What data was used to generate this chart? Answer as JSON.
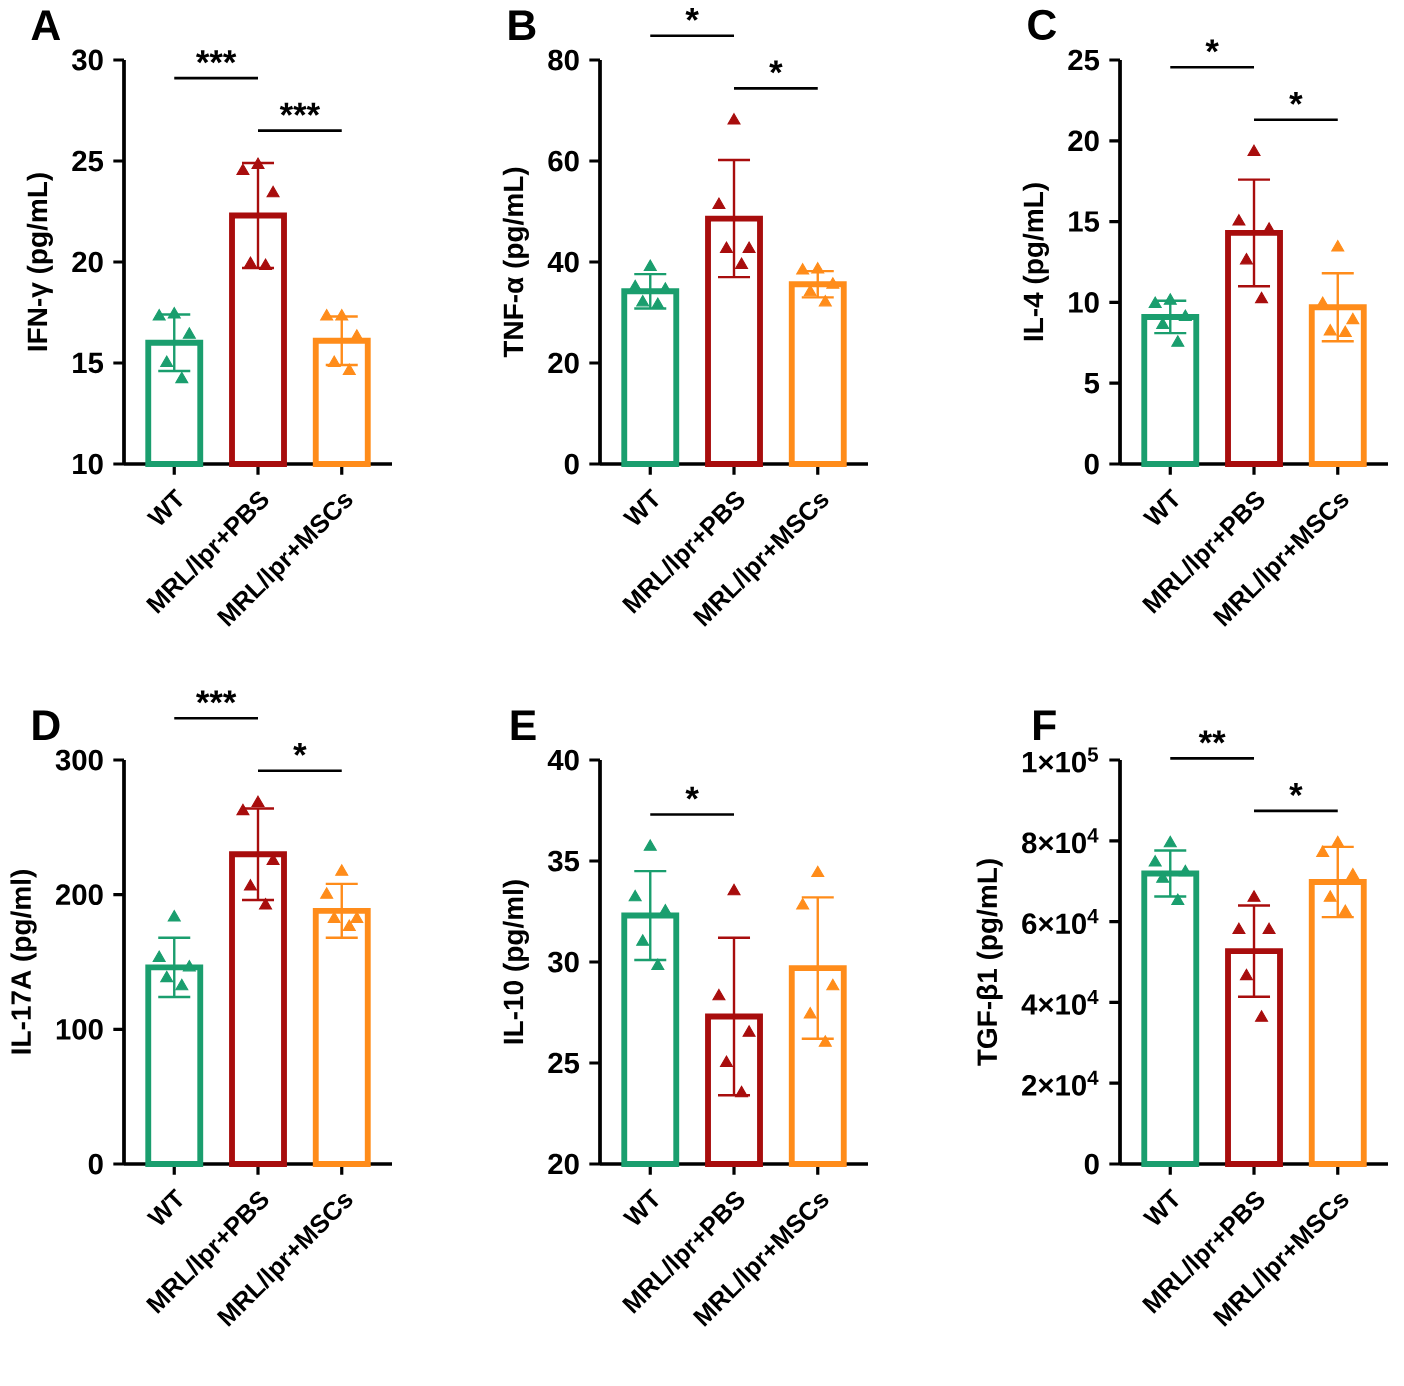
{
  "chart_data": [
    {
      "type": "bar",
      "title": "A",
      "ylabel": "IFN-γ (pg/mL)",
      "categories": [
        "WT",
        "MRL/lpr+PBS",
        "MRL/lpr+MSCs"
      ],
      "ylim": [
        10,
        30
      ],
      "yticks": [
        10,
        15,
        20,
        25,
        30
      ],
      "annotations": [
        "***",
        "***"
      ],
      "series": [
        {
          "values": [
            16.0,
            22.3,
            16.1
          ],
          "colors": [
            "#1a9e6e",
            "#a80d0d",
            "#ff8c1a"
          ],
          "errors": [
            1.4,
            2.6,
            1.2
          ]
        },
        {
          "type": "scatter",
          "marker": "triangle",
          "x": [
            "WT",
            "WT",
            "WT",
            "WT",
            "WT",
            "MRL/lpr+PBS",
            "MRL/lpr+PBS",
            "MRL/lpr+PBS",
            "MRL/lpr+PBS",
            "MRL/lpr+PBS",
            "MRL/lpr+MSCs",
            "MRL/lpr+MSCs",
            "MRL/lpr+MSCs",
            "MRL/lpr+MSCs",
            "MRL/lpr+MSCs"
          ],
          "values": [
            17.4,
            17.3,
            16.4,
            15.0,
            14.2,
            24.8,
            24.5,
            23.4,
            19.9,
            19.8,
            17.3,
            17.3,
            16.3,
            15.0,
            14.6
          ],
          "colors": [
            "#1a9e6e",
            "#1a9e6e",
            "#1a9e6e",
            "#1a9e6e",
            "#1a9e6e",
            "#a80d0d",
            "#a80d0d",
            "#a80d0d",
            "#a80d0d",
            "#a80d0d",
            "#ff8c1a",
            "#ff8c1a",
            "#ff8c1a",
            "#ff8c1a",
            "#ff8c1a"
          ]
        }
      ]
    },
    {
      "type": "bar",
      "title": "B",
      "ylabel": "TNF-α (pg/mL)",
      "categories": [
        "WT",
        "MRL/lpr+PBS",
        "MRL/lpr+MSCs"
      ],
      "ylim": [
        0,
        80
      ],
      "yticks": [
        0,
        20,
        40,
        60,
        80
      ],
      "annotations": [
        "*",
        "*"
      ],
      "series": [
        {
          "values": [
            34.2,
            48.6,
            35.6
          ],
          "colors": [
            "#1a9e6e",
            "#a80d0d",
            "#ff8c1a"
          ],
          "errors": [
            3.4,
            11.6,
            2.6
          ]
        },
        {
          "type": "scatter",
          "marker": "triangle",
          "x": [
            "WT",
            "WT",
            "WT",
            "WT",
            "WT",
            "MRL/lpr+PBS",
            "MRL/lpr+PBS",
            "MRL/lpr+PBS",
            "MRL/lpr+PBS",
            "MRL/lpr+PBS",
            "MRL/lpr+MSCs",
            "MRL/lpr+MSCs",
            "MRL/lpr+MSCs",
            "MRL/lpr+MSCs",
            "MRL/lpr+MSCs"
          ],
          "values": [
            39.0,
            35.0,
            34.5,
            32.0,
            31.5,
            68.0,
            51.3,
            42.6,
            42.6,
            39.4,
            38.5,
            38.3,
            35.5,
            34.0,
            32.0
          ],
          "colors": [
            "#1a9e6e",
            "#1a9e6e",
            "#1a9e6e",
            "#1a9e6e",
            "#1a9e6e",
            "#a80d0d",
            "#a80d0d",
            "#a80d0d",
            "#a80d0d",
            "#a80d0d",
            "#ff8c1a",
            "#ff8c1a",
            "#ff8c1a",
            "#ff8c1a",
            "#ff8c1a"
          ]
        }
      ]
    },
    {
      "type": "bar",
      "title": "C",
      "ylabel": "IL-4 (pg/mL)",
      "categories": [
        "WT",
        "MRL/lpr+PBS",
        "MRL/lpr+MSCs"
      ],
      "ylim": [
        0,
        25
      ],
      "yticks": [
        0,
        5,
        10,
        15,
        20,
        25
      ],
      "annotations": [
        "*",
        "*"
      ],
      "series": [
        {
          "values": [
            9.1,
            14.3,
            9.7
          ],
          "colors": [
            "#1a9e6e",
            "#a80d0d",
            "#ff8c1a"
          ],
          "errors": [
            1.0,
            3.3,
            2.1
          ]
        },
        {
          "type": "scatter",
          "marker": "triangle",
          "x": [
            "WT",
            "WT",
            "WT",
            "WT",
            "WT",
            "MRL/lpr+PBS",
            "MRL/lpr+PBS",
            "MRL/lpr+PBS",
            "MRL/lpr+PBS",
            "MRL/lpr+PBS",
            "MRL/lpr+MSCs",
            "MRL/lpr+MSCs",
            "MRL/lpr+MSCs",
            "MRL/lpr+MSCs",
            "MRL/lpr+MSCs"
          ],
          "values": [
            10.1,
            9.9,
            9.1,
            8.6,
            7.5,
            19.3,
            15.0,
            14.5,
            12.6,
            10.2,
            13.4,
            9.9,
            8.9,
            8.2,
            8.1
          ],
          "colors": [
            "#1a9e6e",
            "#1a9e6e",
            "#1a9e6e",
            "#1a9e6e",
            "#1a9e6e",
            "#a80d0d",
            "#a80d0d",
            "#a80d0d",
            "#a80d0d",
            "#a80d0d",
            "#ff8c1a",
            "#ff8c1a",
            "#ff8c1a",
            "#ff8c1a",
            "#ff8c1a"
          ]
        }
      ]
    },
    {
      "type": "bar",
      "title": "D",
      "ylabel": "IL-17A (pg/ml)",
      "categories": [
        "WT",
        "MRL/lpr+PBS",
        "MRL/lpr+MSCs"
      ],
      "ylim": [
        0,
        300
      ],
      "yticks": [
        0,
        100,
        200,
        300
      ],
      "annotations": [
        "***",
        "*"
      ],
      "series": [
        {
          "values": [
            146,
            230,
            188
          ],
          "colors": [
            "#1a9e6e",
            "#a80d0d",
            "#ff8c1a"
          ],
          "errors": [
            22,
            34,
            20
          ]
        },
        {
          "type": "scatter",
          "marker": "triangle",
          "x": [
            "WT",
            "WT",
            "WT",
            "WT",
            "WT",
            "MRL/lpr+PBS",
            "MRL/lpr+PBS",
            "MRL/lpr+PBS",
            "MRL/lpr+PBS",
            "MRL/lpr+PBS",
            "MRL/lpr+MSCs",
            "MRL/lpr+MSCs",
            "MRL/lpr+MSCs",
            "MRL/lpr+MSCs",
            "MRL/lpr+MSCs"
          ],
          "values": [
            183,
            153,
            146,
            138,
            132,
            268,
            262,
            225,
            206,
            192,
            217,
            200,
            182,
            182,
            176
          ],
          "colors": [
            "#1a9e6e",
            "#1a9e6e",
            "#1a9e6e",
            "#1a9e6e",
            "#1a9e6e",
            "#a80d0d",
            "#a80d0d",
            "#a80d0d",
            "#a80d0d",
            "#a80d0d",
            "#ff8c1a",
            "#ff8c1a",
            "#ff8c1a",
            "#ff8c1a",
            "#ff8c1a"
          ]
        }
      ]
    },
    {
      "type": "bar",
      "title": "E",
      "ylabel": "IL-10 (pg/ml)",
      "categories": [
        "WT",
        "MRL/lpr+PBS",
        "MRL/lpr+MSCs"
      ],
      "ylim": [
        20,
        40
      ],
      "yticks": [
        20,
        25,
        30,
        35,
        40
      ],
      "annotations": [
        "*"
      ],
      "series": [
        {
          "values": [
            32.3,
            27.3,
            29.7
          ],
          "colors": [
            "#1a9e6e",
            "#a80d0d",
            "#ff8c1a"
          ],
          "errors": [
            2.2,
            3.9,
            3.5
          ]
        },
        {
          "type": "scatter",
          "marker": "triangle",
          "x": [
            "WT",
            "WT",
            "WT",
            "WT",
            "WT",
            "MRL/lpr+PBS",
            "MRL/lpr+PBS",
            "MRL/lpr+PBS",
            "MRL/lpr+PBS",
            "MRL/lpr+PBS",
            "MRL/lpr+MSCs",
            "MRL/lpr+MSCs",
            "MRL/lpr+MSCs",
            "MRL/lpr+MSCs",
            "MRL/lpr+MSCs"
          ],
          "values": [
            35.7,
            33.2,
            32.5,
            31.0,
            29.8,
            33.5,
            28.3,
            26.5,
            25.0,
            23.5,
            34.4,
            32.8,
            28.8,
            27.4,
            26.0
          ],
          "colors": [
            "#1a9e6e",
            "#1a9e6e",
            "#1a9e6e",
            "#1a9e6e",
            "#1a9e6e",
            "#a80d0d",
            "#a80d0d",
            "#a80d0d",
            "#a80d0d",
            "#a80d0d",
            "#ff8c1a",
            "#ff8c1a",
            "#ff8c1a",
            "#ff8c1a",
            "#ff8c1a"
          ]
        }
      ]
    },
    {
      "type": "bar",
      "title": "F",
      "ylabel": "TGF-β1 (pg/mL)",
      "categories": [
        "WT",
        "MRL/lpr+PBS",
        "MRL/lpr+MSCs"
      ],
      "ylim": [
        0,
        100000
      ],
      "yticks": [
        0,
        {
          "value": 20000,
          "label": "2×10$^{4}$"
        },
        {
          "value": 40000,
          "label": "4×10$^{4}$"
        },
        {
          "value": 60000,
          "label": "6×10$^{4}$"
        },
        {
          "value": 80000,
          "label": "8×10$^{4}$"
        },
        {
          "value": 100000,
          "label": "1×10$^{5}$"
        }
      ],
      "annotations": [
        "**",
        "*"
      ],
      "series": [
        {
          "values": [
            71900,
            52700,
            69800
          ],
          "colors": [
            "#1a9e6e",
            "#a80d0d",
            "#ff8c1a"
          ],
          "errors": [
            5700,
            11300,
            8700
          ]
        },
        {
          "type": "scatter",
          "marker": "triangle",
          "x": [
            "WT",
            "WT",
            "WT",
            "WT",
            "WT",
            "MRL/lpr+PBS",
            "MRL/lpr+PBS",
            "MRL/lpr+PBS",
            "MRL/lpr+PBS",
            "MRL/lpr+PBS",
            "MRL/lpr+MSCs",
            "MRL/lpr+MSCs",
            "MRL/lpr+MSCs",
            "MRL/lpr+MSCs",
            "MRL/lpr+MSCs"
          ],
          "values": [
            79400,
            74600,
            72200,
            70600,
            65100,
            65900,
            57900,
            57900,
            46500,
            36200,
            79400,
            77000,
            71400,
            65900,
            62400
          ],
          "colors": [
            "#1a9e6e",
            "#1a9e6e",
            "#1a9e6e",
            "#1a9e6e",
            "#1a9e6e",
            "#a80d0d",
            "#a80d0d",
            "#a80d0d",
            "#a80d0d",
            "#a80d0d",
            "#ff8c1a",
            "#ff8c1a",
            "#ff8c1a",
            "#ff8c1a",
            "#ff8c1a"
          ]
        }
      ]
    }
  ]
}
